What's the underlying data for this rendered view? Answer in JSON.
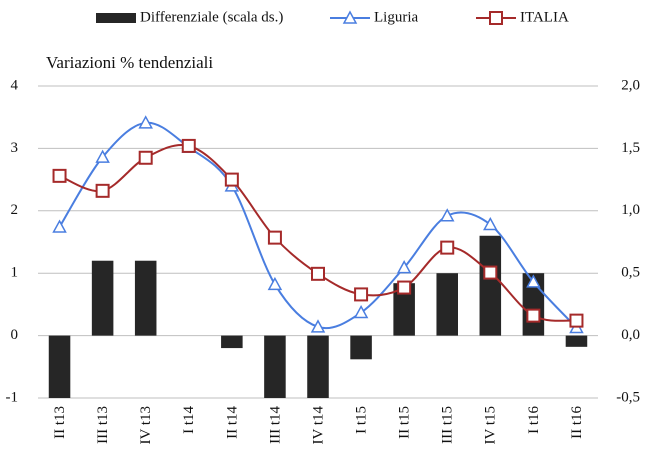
{
  "chart_data": {
    "type": "bar-line",
    "title": "Variazioni % tendenziali",
    "categories": [
      "II t13",
      "III t13",
      "IV t13",
      "I t14",
      "II t14",
      "III t14",
      "IV t14",
      "I t15",
      "II t15",
      "III t15",
      "IV t15",
      "I t16",
      "II t16"
    ],
    "series": [
      {
        "name": "Differenziale (scala ds.)",
        "type": "bar",
        "axis": "y2",
        "color": "#262626",
        "values": [
          -0.5,
          0.6,
          0.6,
          0,
          -0.1,
          -0.5,
          -0.5,
          -0.19,
          0.42,
          0.5,
          0.8,
          0.5,
          -0.09
        ]
      },
      {
        "name": "Liguria",
        "type": "line",
        "marker": "triangle",
        "color": "#4a7ee0",
        "values": [
          1.74,
          2.86,
          3.41,
          3.02,
          2.4,
          0.82,
          0.14,
          0.37,
          1.09,
          1.92,
          1.78,
          0.86,
          0.13
        ]
      },
      {
        "name": "ITALIA",
        "type": "line",
        "marker": "square",
        "color": "#a52a2a",
        "values": [
          2.56,
          2.32,
          2.85,
          3.04,
          2.5,
          1.57,
          0.99,
          0.66,
          0.77,
          1.41,
          1.01,
          0.32,
          0.24
        ]
      }
    ],
    "ylim": [
      -1,
      4
    ],
    "yticks": [
      -1,
      0,
      1,
      2,
      3,
      4
    ],
    "y2lim": [
      -0.5,
      2
    ],
    "y2ticks": [
      {
        "value": -0.5,
        "label": "-0,5"
      },
      {
        "value": 0,
        "label": "0,0"
      },
      {
        "value": 0.5,
        "label": "0,5"
      },
      {
        "value": 1,
        "label": "1,0"
      },
      {
        "value": 1.5,
        "label": "1,5"
      },
      {
        "value": 2,
        "label": "2,0"
      }
    ],
    "grid": true,
    "legend": "top"
  }
}
